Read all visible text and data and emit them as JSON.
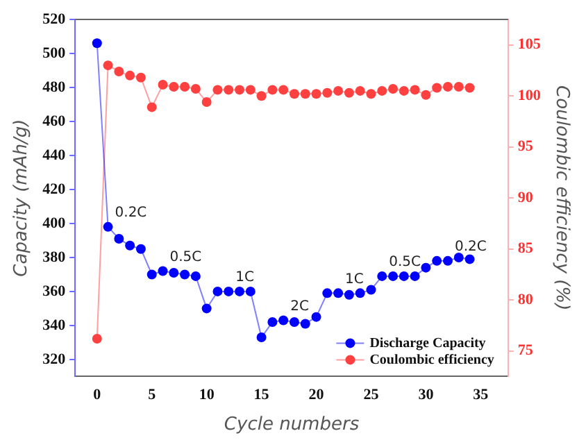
{
  "chart_data": {
    "type": "line",
    "xlabel": "Cycle numbers",
    "ylabel": "Capacity (mAh/g)",
    "y2label": "Coulombic efficiency (%)",
    "x": [
      0,
      1,
      2,
      3,
      4,
      5,
      6,
      7,
      8,
      9,
      10,
      11,
      12,
      13,
      14,
      15,
      16,
      17,
      18,
      19,
      20,
      21,
      22,
      23,
      24,
      25,
      26,
      27,
      28,
      29,
      30,
      31,
      32,
      33,
      34
    ],
    "series": [
      {
        "name": "Discharge Capacity",
        "color": "#0000ff",
        "values": [
          506,
          398,
          391,
          387,
          385,
          370,
          372,
          371,
          370,
          369,
          350,
          360,
          360,
          360,
          360,
          333,
          342,
          343,
          342,
          341,
          345,
          359,
          359,
          358,
          359,
          361,
          369,
          369,
          369,
          369,
          374,
          378,
          378,
          380,
          379
        ]
      },
      {
        "name": "Coulombic efficiency",
        "color": "#ff4040",
        "axis": "y2",
        "values": [
          76.2,
          103.0,
          102.4,
          102.0,
          101.8,
          98.9,
          101.1,
          100.9,
          100.9,
          100.7,
          99.4,
          100.6,
          100.6,
          100.6,
          100.6,
          100.0,
          100.6,
          100.6,
          100.2,
          100.2,
          100.2,
          100.3,
          100.5,
          100.3,
          100.5,
          100.2,
          100.5,
          100.7,
          100.5,
          100.6,
          100.1,
          100.8,
          100.9,
          100.9,
          100.8
        ]
      }
    ],
    "xlim": [
      -2,
      37.5
    ],
    "xticks": [
      0,
      5,
      10,
      15,
      20,
      25,
      30,
      35
    ],
    "ylim": [
      310,
      520
    ],
    "yticks": [
      320,
      340,
      360,
      380,
      400,
      420,
      440,
      460,
      480,
      500,
      520
    ],
    "y2lim": [
      72.5,
      107.5
    ],
    "y2ticks": [
      75,
      80,
      85,
      90,
      95,
      100,
      105
    ],
    "marker": "circle",
    "legend": "bottom right",
    "grid": false,
    "annotations": [
      {
        "text": "0.2C",
        "x": 1,
        "y": 398
      },
      {
        "text": "0.5C",
        "x": 6,
        "y": 372
      },
      {
        "text": "1C",
        "x": 12,
        "y": 360
      },
      {
        "text": "2C",
        "x": 17,
        "y": 343
      },
      {
        "text": "1C",
        "x": 22,
        "y": 359
      },
      {
        "text": "0.5C",
        "x": 26,
        "y": 369
      },
      {
        "text": "0.2C",
        "x": 32,
        "y": 378
      }
    ]
  }
}
